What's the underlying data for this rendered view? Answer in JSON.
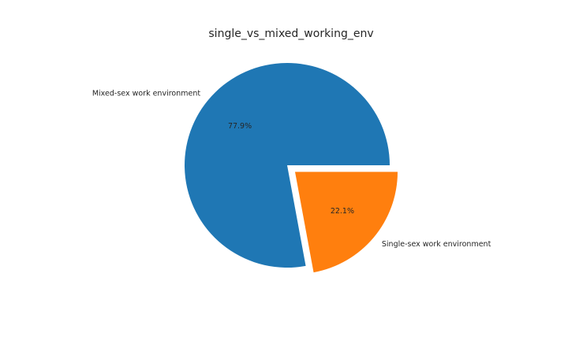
{
  "chart_data": {
    "type": "pie",
    "title": "single_vs_mixed_working_env",
    "categories": [
      "Mixed-sex work environment",
      "Single-sex work environment"
    ],
    "values": [
      77.9,
      22.1
    ],
    "percent_labels": [
      "77.9%",
      "22.1%"
    ],
    "colors": [
      "#1f77b4",
      "#ff7f0e"
    ],
    "explode": [
      0,
      0.1
    ],
    "grid": false,
    "legend": "none"
  }
}
